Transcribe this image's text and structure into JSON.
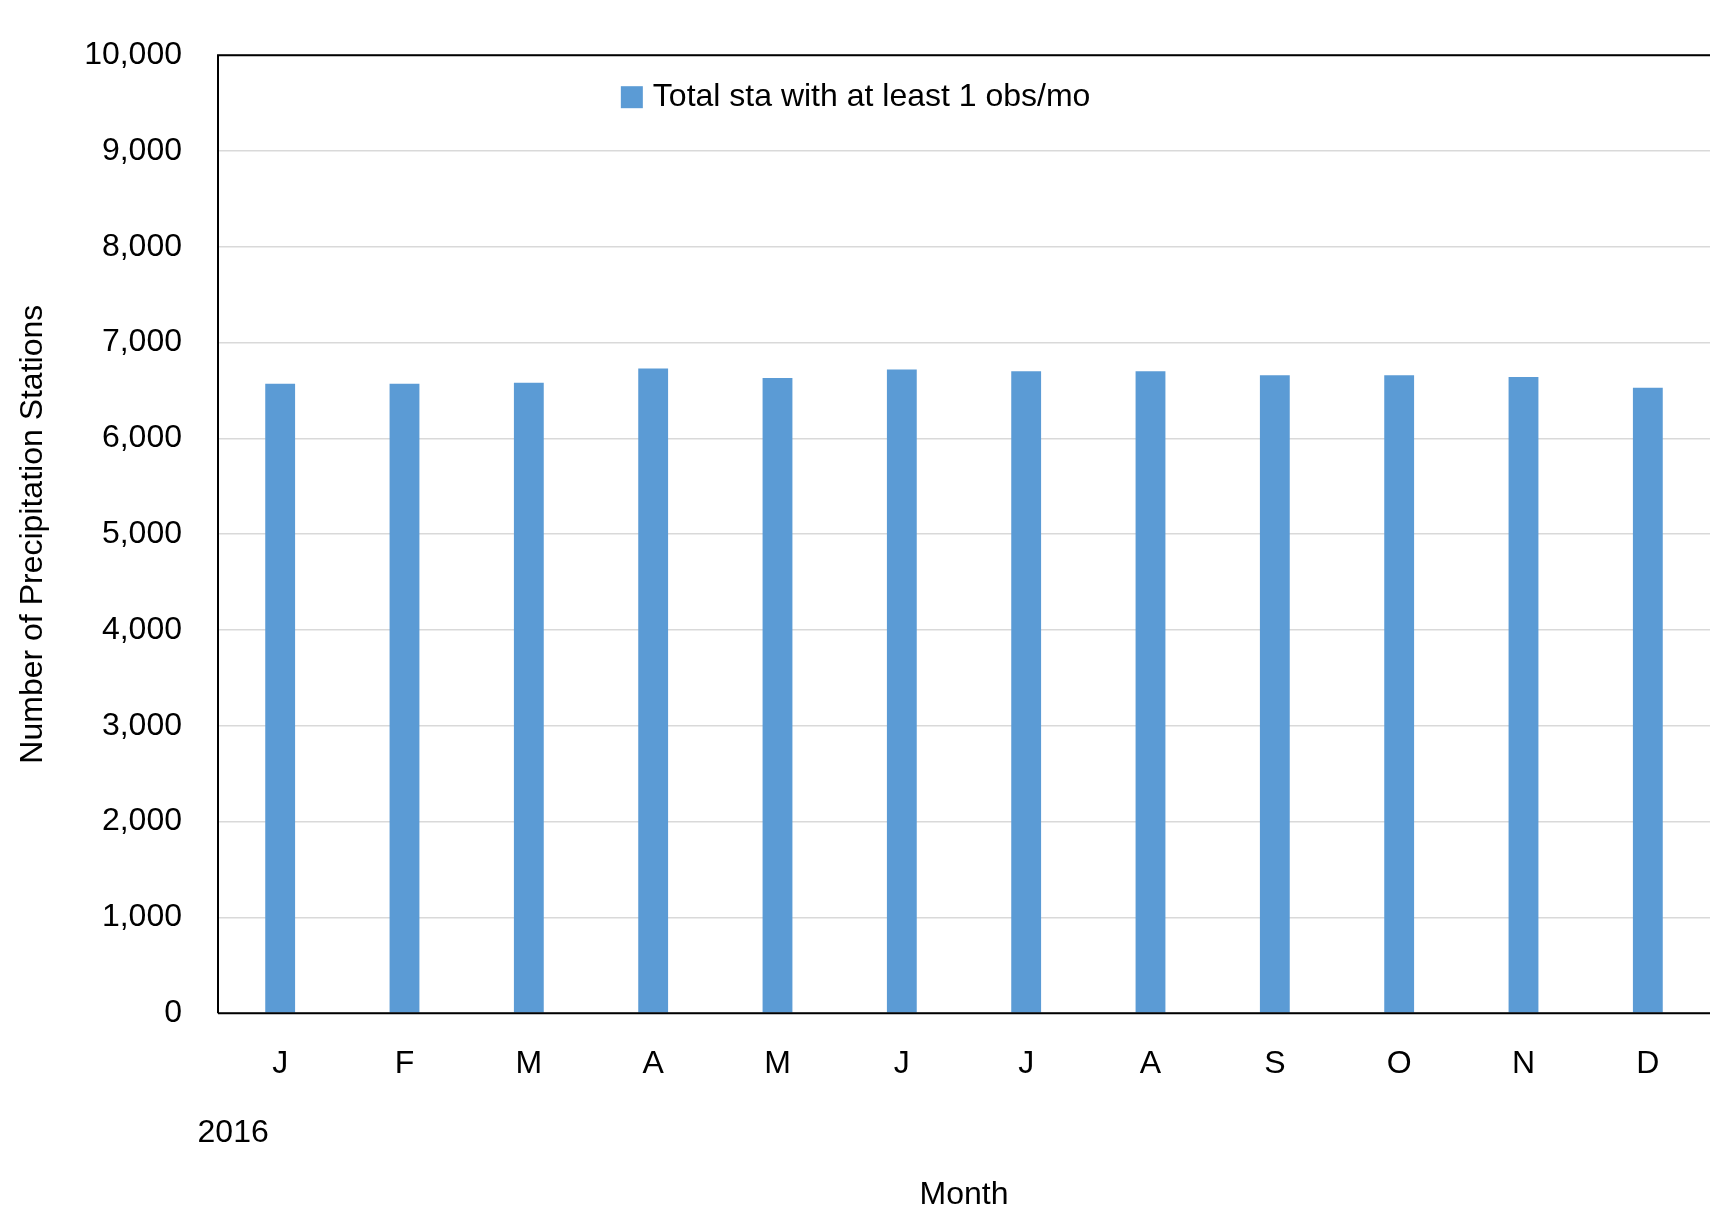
{
  "chart_data": {
    "type": "bar",
    "xlabel": "Month",
    "ylabel": "Number of Precipitation Stations",
    "categories": [
      "J",
      "F",
      "M",
      "A",
      "M",
      "J",
      "J",
      "A",
      "S",
      "O",
      "N",
      "D"
    ],
    "series": [
      {
        "name": "Total sta with at least 1 obs/mo",
        "color": "#5b9bd5",
        "values": [
          6570,
          6570,
          6580,
          6730,
          6630,
          6720,
          6700,
          6700,
          6660,
          6660,
          6640,
          6530
        ]
      }
    ],
    "ylim": [
      0,
      10000
    ],
    "yticks": [
      0,
      {
        "value": 1000,
        "label": "1,000"
      },
      {
        "value": 2000,
        "label": "2,000"
      },
      {
        "value": 3000,
        "label": "3,000"
      },
      {
        "value": 4000,
        "label": "4,000"
      },
      {
        "value": 5000,
        "label": "5,000"
      },
      {
        "value": 6000,
        "label": "6,000"
      },
      {
        "value": 7000,
        "label": "7,000"
      },
      {
        "value": 8000,
        "label": "8,000"
      },
      {
        "value": 9000,
        "label": "9,000"
      },
      {
        "value": 10000,
        "label": "10,000"
      }
    ],
    "grid": "y",
    "legend": "top",
    "annotations": [
      "2016"
    ]
  }
}
